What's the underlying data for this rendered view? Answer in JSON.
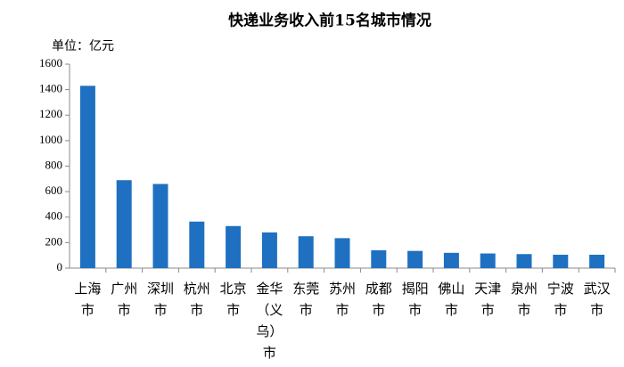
{
  "chart_data": {
    "type": "bar",
    "title": "快递业务收入前15名城市情况",
    "unit_label": "单位：亿元",
    "categories": [
      "上海市",
      "广州市",
      "深圳市",
      "杭州市",
      "北京市",
      "金华（义乌）市",
      "东莞市",
      "苏州市",
      "成都市",
      "揭阳市",
      "佛山市",
      "天津市",
      "泉州市",
      "宁波市",
      "武汉市"
    ],
    "values": [
      1430,
      690,
      660,
      365,
      330,
      280,
      250,
      235,
      140,
      135,
      120,
      115,
      110,
      105,
      105
    ],
    "color": "#1f70c1",
    "ylim": [
      0,
      1600
    ],
    "yticks": [
      0,
      200,
      400,
      600,
      800,
      1000,
      1200,
      1400,
      1600
    ],
    "grid": false
  }
}
